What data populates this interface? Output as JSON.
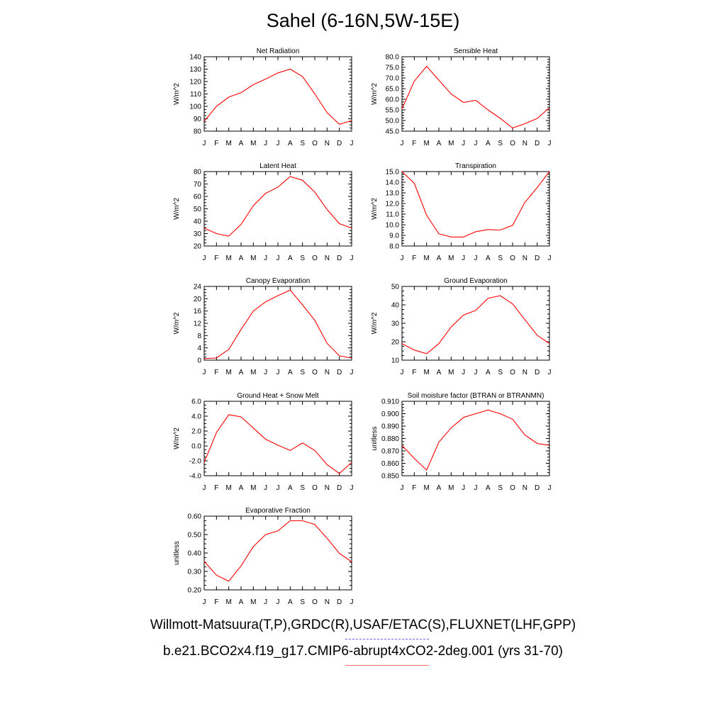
{
  "title": "Sahel (6-16N,5W-15E)",
  "captions": {
    "observations": "Willmott-Matsuura(T,P),GRDC(R),USAF/ETAC(S),FLUXNET(LHF,GPP)",
    "model": "b.e21.BCO2x4.f19_g17.CMIP6-abrupt4xCO2-2deg.001 (yrs 31-70)"
  },
  "colors": {
    "model_line": "#ff0000",
    "observations_line": "#6b6bff",
    "axis": "#000000"
  },
  "chart_data": [
    {
      "type": "line",
      "title": "Net Radiation",
      "xlabel": "",
      "ylabel": "W/m^2",
      "categories": [
        "J",
        "F",
        "M",
        "A",
        "M",
        "J",
        "J",
        "A",
        "S",
        "O",
        "N",
        "D",
        "J"
      ],
      "ylim": [
        80,
        140
      ],
      "yticks": [
        "80",
        "90",
        "100",
        "110",
        "120",
        "130",
        "140"
      ],
      "series": [
        {
          "values": [
            88,
            100,
            107.5,
            111,
            117.5,
            122,
            127,
            130,
            124,
            110,
            95,
            85.5,
            88.5
          ]
        }
      ]
    },
    {
      "type": "line",
      "title": "Sensible Heat",
      "xlabel": "",
      "ylabel": "W/m^2",
      "categories": [
        "J",
        "F",
        "M",
        "A",
        "M",
        "J",
        "J",
        "A",
        "S",
        "O",
        "N",
        "D",
        "J"
      ],
      "ylim": [
        45,
        80
      ],
      "yticks": [
        "45.0",
        "50.0",
        "55.0",
        "60.0",
        "65.0",
        "70.0",
        "75.0",
        "80.0"
      ],
      "series": [
        {
          "values": [
            55.5,
            68.5,
            75.5,
            69,
            62.5,
            58.5,
            59.5,
            55,
            51,
            46.5,
            48.5,
            51,
            56
          ]
        }
      ]
    },
    {
      "type": "line",
      "title": "Latent Heat",
      "xlabel": "",
      "ylabel": "W/m^2",
      "categories": [
        "J",
        "F",
        "M",
        "A",
        "M",
        "J",
        "J",
        "A",
        "S",
        "O",
        "N",
        "D",
        "J"
      ],
      "ylim": [
        20,
        80
      ],
      "yticks": [
        "20",
        "30",
        "40",
        "50",
        "60",
        "70",
        "80"
      ],
      "series": [
        {
          "values": [
            34.5,
            30,
            28,
            37.5,
            52.5,
            62.5,
            67.5,
            76,
            73,
            63.5,
            49.5,
            38,
            34.5
          ]
        }
      ]
    },
    {
      "type": "line",
      "title": "Transpiration",
      "xlabel": "",
      "ylabel": "W/m^2",
      "categories": [
        "J",
        "F",
        "M",
        "A",
        "M",
        "J",
        "J",
        "A",
        "S",
        "O",
        "N",
        "D",
        "J"
      ],
      "ylim": [
        8,
        15
      ],
      "yticks": [
        "8.0",
        "9.0",
        "10.0",
        "11.0",
        "12.0",
        "13.0",
        "14.0",
        "15.0"
      ],
      "series": [
        {
          "values": [
            15,
            13.9,
            10.9,
            9.15,
            8.85,
            8.85,
            9.35,
            9.55,
            9.5,
            9.95,
            12.1,
            13.5,
            15
          ]
        }
      ]
    },
    {
      "type": "line",
      "title": "Canopy Evaporation",
      "xlabel": "",
      "ylabel": "W/m^2",
      "categories": [
        "J",
        "F",
        "M",
        "A",
        "M",
        "J",
        "J",
        "A",
        "S",
        "O",
        "N",
        "D",
        "J"
      ],
      "ylim": [
        0,
        24
      ],
      "yticks": [
        "0",
        "4",
        "8",
        "12",
        "16",
        "20",
        "24"
      ],
      "series": [
        {
          "values": [
            0.5,
            0.7,
            3.5,
            10,
            16,
            19,
            21,
            22.8,
            18,
            13,
            5.5,
            1.4,
            0.7
          ]
        }
      ]
    },
    {
      "type": "line",
      "title": "Ground Evaporation",
      "xlabel": "",
      "ylabel": "W/m^2",
      "categories": [
        "J",
        "F",
        "M",
        "A",
        "M",
        "J",
        "J",
        "A",
        "S",
        "O",
        "N",
        "D",
        "J"
      ],
      "ylim": [
        10,
        50
      ],
      "yticks": [
        "10",
        "20",
        "30",
        "40",
        "50"
      ],
      "series": [
        {
          "values": [
            19,
            15.5,
            13.5,
            19,
            28,
            34.5,
            37,
            43.5,
            45,
            40.5,
            32,
            23.5,
            19
          ]
        }
      ]
    },
    {
      "type": "line",
      "title": "Ground Heat + Snow Melt",
      "xlabel": "",
      "ylabel": "W/m^2",
      "categories": [
        "J",
        "F",
        "M",
        "A",
        "M",
        "J",
        "J",
        "A",
        "S",
        "O",
        "N",
        "D",
        "J"
      ],
      "ylim": [
        -4,
        6
      ],
      "yticks": [
        "-4.0",
        "-2.0",
        "0.0",
        "2.0",
        "4.0",
        "6.0"
      ],
      "series": [
        {
          "values": [
            -2.2,
            1.8,
            4.2,
            3.9,
            2.4,
            0.9,
            0.1,
            -0.6,
            0.4,
            -0.6,
            -2.5,
            -3.7,
            -2.2
          ]
        }
      ]
    },
    {
      "type": "line",
      "title": "Soil moisture factor (BTRAN or BTRANMN)",
      "xlabel": "",
      "ylabel": "unitless",
      "categories": [
        "J",
        "F",
        "M",
        "A",
        "M",
        "J",
        "J",
        "A",
        "S",
        "O",
        "N",
        "D",
        "J"
      ],
      "ylim": [
        0.85,
        0.91
      ],
      "yticks": [
        "0.850",
        "0.860",
        "0.870",
        "0.880",
        "0.890",
        "0.900",
        "0.910"
      ],
      "series": [
        {
          "values": [
            0.8745,
            0.864,
            0.8545,
            0.877,
            0.8885,
            0.897,
            0.9,
            0.903,
            0.9,
            0.8955,
            0.883,
            0.876,
            0.8745
          ]
        }
      ]
    },
    {
      "type": "line",
      "title": "Evaporative Fraction",
      "xlabel": "",
      "ylabel": "unitless",
      "categories": [
        "J",
        "F",
        "M",
        "A",
        "M",
        "J",
        "J",
        "A",
        "S",
        "O",
        "N",
        "D",
        "J"
      ],
      "ylim": [
        0.2,
        0.6
      ],
      "yticks": [
        "0.20",
        "0.30",
        "0.40",
        "0.50",
        "0.60"
      ],
      "series": [
        {
          "values": [
            0.355,
            0.28,
            0.247,
            0.33,
            0.435,
            0.5,
            0.52,
            0.575,
            0.575,
            0.555,
            0.48,
            0.398,
            0.352
          ]
        }
      ]
    }
  ]
}
